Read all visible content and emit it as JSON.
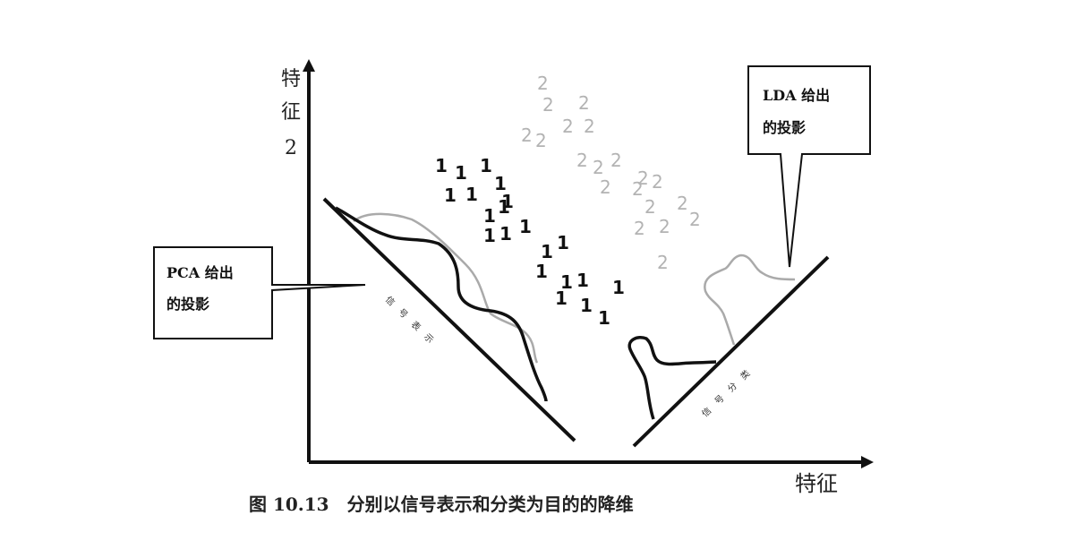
{
  "axes": {
    "y_label": [
      "特",
      "征",
      "2"
    ],
    "x_label": "特征"
  },
  "callouts": {
    "pca": [
      "PCA 给出",
      "的投影"
    ],
    "lda": [
      "LDA 给出",
      "的投影"
    ]
  },
  "projection_labels": {
    "pca": "信号表示",
    "lda": "信号分类"
  },
  "caption": "图 10.13　分别以信号表示和分类为目的的降维",
  "class_labels": {
    "class1": "1",
    "class2": "2"
  },
  "colors": {
    "class1": "#111111",
    "class2": "#b0b0b0",
    "line": "#111111"
  }
}
